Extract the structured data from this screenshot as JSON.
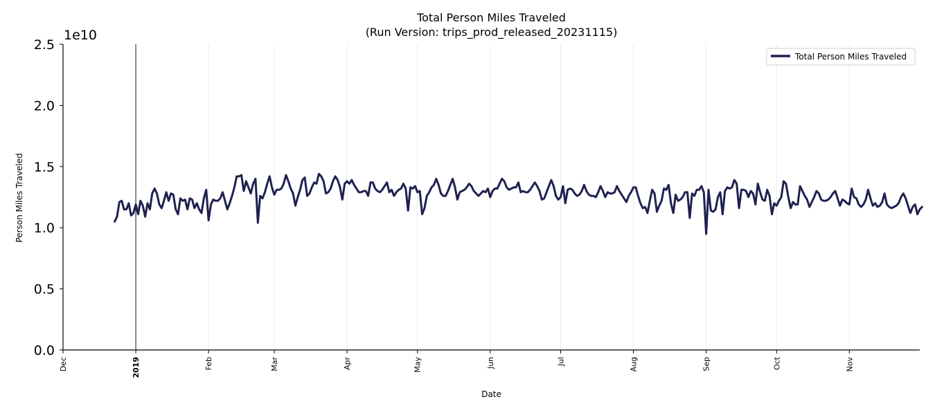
{
  "chart_data": {
    "type": "line",
    "title": "Total Person Miles Traveled",
    "subtitle": "(Run Version: trips_prod_released_20231115)",
    "xlabel": "Date",
    "ylabel": "Person Miles Traveled",
    "y_offset_label": "1e10",
    "ylim": [
      0,
      25000000000
    ],
    "yticks": [
      0,
      5000000000,
      10000000000,
      15000000000,
      20000000000,
      25000000000
    ],
    "ytick_labels": [
      "0.0",
      "0.5",
      "1.0",
      "1.5",
      "2.0",
      "2.5"
    ],
    "xlim": [
      "2018-12-01",
      "2019-12-01"
    ],
    "xticks": [
      {
        "date": "2018-12-01",
        "label": "Dec",
        "bold": false
      },
      {
        "date": "2019-01-01",
        "label": "2019",
        "bold": true
      },
      {
        "date": "2019-02-01",
        "label": "Feb",
        "bold": false
      },
      {
        "date": "2019-03-01",
        "label": "Mar",
        "bold": false
      },
      {
        "date": "2019-04-01",
        "label": "Apr",
        "bold": false
      },
      {
        "date": "2019-05-01",
        "label": "May",
        "bold": false
      },
      {
        "date": "2019-06-01",
        "label": "Jun",
        "bold": false
      },
      {
        "date": "2019-07-01",
        "label": "Jul",
        "bold": false
      },
      {
        "date": "2019-08-01",
        "label": "Aug",
        "bold": false
      },
      {
        "date": "2019-09-01",
        "label": "Sep",
        "bold": false
      },
      {
        "date": "2019-10-01",
        "label": "Oct",
        "bold": false
      },
      {
        "date": "2019-11-01",
        "label": "Nov",
        "bold": false
      }
    ],
    "vline_date": "2019-01-01",
    "grid": "vertical",
    "legend_position": "top-right",
    "series": [
      {
        "name": "Total Person Miles Traveled",
        "color": "#1e2150",
        "start_date": "2018-12-23",
        "values": [
          10.5,
          10.9,
          12.1,
          12.2,
          11.5,
          11.5,
          12.0,
          11.0,
          11.2,
          11.9,
          11.1,
          12.2,
          11.8,
          10.9,
          12.0,
          11.5,
          12.8,
          13.2,
          12.8,
          11.9,
          11.6,
          12.2,
          12.9,
          12.2,
          12.8,
          12.7,
          11.5,
          11.1,
          12.4,
          12.2,
          12.3,
          11.5,
          12.4,
          12.3,
          11.6,
          12.0,
          11.5,
          11.2,
          12.4,
          13.1,
          10.6,
          11.9,
          12.3,
          12.2,
          12.2,
          12.4,
          12.9,
          12.2,
          11.5,
          12.0,
          12.6,
          13.3,
          14.2,
          14.2,
          14.3,
          13.0,
          13.8,
          13.3,
          12.8,
          13.6,
          14.0,
          10.4,
          12.6,
          12.4,
          12.9,
          13.6,
          14.2,
          13.3,
          12.7,
          13.1,
          13.1,
          13.2,
          13.6,
          14.3,
          13.8,
          13.2,
          12.8,
          11.8,
          12.5,
          13.1,
          13.9,
          14.1,
          12.6,
          12.8,
          13.3,
          13.7,
          13.6,
          14.4,
          14.2,
          13.8,
          12.8,
          12.9,
          13.2,
          13.8,
          14.2,
          13.9,
          13.3,
          12.3,
          13.6,
          13.8,
          13.6,
          13.9,
          13.5,
          13.2,
          12.9,
          12.9,
          13.0,
          13.0,
          12.6,
          13.7,
          13.7,
          13.2,
          13.0,
          12.9,
          13.1,
          13.4,
          13.7,
          12.9,
          13.1,
          12.6,
          12.9,
          13.1,
          13.2,
          13.6,
          13.2,
          11.4,
          13.3,
          13.2,
          13.4,
          12.9,
          13.0,
          11.1,
          11.6,
          12.6,
          12.9,
          13.3,
          13.5,
          14.0,
          13.5,
          12.8,
          12.6,
          12.6,
          13.0,
          13.5,
          14.0,
          13.3,
          12.3,
          12.9,
          13.0,
          13.1,
          13.3,
          13.6,
          13.4,
          13.0,
          12.8,
          12.6,
          12.8,
          13.0,
          12.9,
          13.2,
          12.5,
          13.0,
          13.2,
          13.2,
          13.6,
          14.0,
          13.8,
          13.3,
          13.1,
          13.2,
          13.3,
          13.3,
          13.7,
          12.9,
          13.0,
          12.9,
          12.9,
          13.1,
          13.4,
          13.7,
          13.4,
          13.0,
          12.3,
          12.4,
          12.9,
          13.4,
          13.9,
          13.4,
          12.6,
          12.3,
          12.5,
          13.4,
          12.0,
          13.1,
          13.2,
          13.1,
          12.8,
          12.6,
          12.7,
          13.0,
          13.5,
          13.0,
          12.7,
          12.6,
          12.6,
          12.5,
          12.9,
          13.4,
          13.0,
          12.5,
          12.9,
          12.8,
          12.8,
          12.9,
          13.4,
          13.0,
          12.7,
          12.4,
          12.1,
          12.6,
          12.9,
          13.3,
          13.3,
          12.6,
          12.0,
          11.6,
          11.7,
          11.2,
          12.2,
          13.1,
          12.8,
          11.3,
          11.8,
          12.2,
          13.2,
          13.1,
          13.5,
          12.0,
          11.2,
          12.7,
          12.2,
          12.3,
          12.5,
          12.9,
          12.9,
          10.8,
          12.8,
          12.6,
          13.1,
          13.1,
          13.4,
          12.9,
          9.5,
          13.1,
          11.4,
          11.3,
          11.5,
          12.5,
          12.9,
          11.1,
          13.0,
          13.3,
          13.2,
          13.3,
          13.9,
          13.6,
          11.6,
          13.1,
          13.1,
          13.0,
          12.5,
          13.0,
          12.8,
          11.9,
          13.6,
          12.9,
          12.3,
          12.2,
          13.1,
          12.6,
          11.1,
          12.0,
          11.8,
          12.2,
          12.5,
          13.8,
          13.6,
          12.5,
          11.6,
          12.1,
          11.9,
          11.9,
          13.4,
          13.0,
          12.6,
          12.3,
          11.7,
          12.1,
          12.5,
          13.0,
          12.8,
          12.3,
          12.2,
          12.2,
          12.3,
          12.5,
          12.8,
          13.0,
          12.4,
          11.8,
          12.3,
          12.2,
          12.0,
          11.9,
          13.2,
          12.5,
          12.4,
          11.9,
          11.7,
          11.9,
          12.3,
          13.1,
          12.4,
          11.8,
          12.0,
          11.7,
          11.8,
          12.1,
          12.8,
          11.9,
          11.7,
          11.6,
          11.7,
          11.8,
          12.0,
          12.5,
          12.8,
          12.4,
          11.8,
          11.2,
          11.7,
          11.9,
          11.1,
          11.5,
          11.7
        ]
      }
    ]
  }
}
